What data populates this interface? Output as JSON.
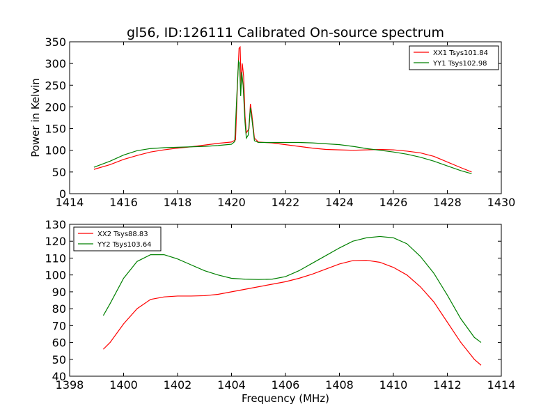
{
  "chart_data": {
    "title": "gl56, ID:126111 Calibrated On-source spectrum",
    "xlabel": "Frequency (MHz)",
    "ylabel": "Power in Kelvin",
    "panels": [
      {
        "type": "line",
        "xlim": [
          1414,
          1430
        ],
        "ylim": [
          0,
          350
        ],
        "xticks": [
          1414,
          1416,
          1418,
          1420,
          1422,
          1424,
          1426,
          1428,
          1430
        ],
        "yticks": [
          0,
          50,
          100,
          150,
          200,
          250,
          300,
          350
        ],
        "legend": "top-right",
        "series": [
          {
            "name": "XX1 Tsys101.84",
            "color": "#ff0000",
            "points": [
              [
                1414.9,
                56
              ],
              [
                1415.5,
                67
              ],
              [
                1416,
                79
              ],
              [
                1416.5,
                88
              ],
              [
                1417,
                96
              ],
              [
                1417.5,
                101
              ],
              [
                1418,
                105
              ],
              [
                1418.5,
                108
              ],
              [
                1419,
                112
              ],
              [
                1419.5,
                116
              ],
              [
                1420,
                119
              ],
              [
                1420.15,
                124
              ],
              [
                1420.22,
                250
              ],
              [
                1420.28,
                335
              ],
              [
                1420.32,
                338
              ],
              [
                1420.36,
                250
              ],
              [
                1420.4,
                300
              ],
              [
                1420.45,
                270
              ],
              [
                1420.5,
                180
              ],
              [
                1420.55,
                140
              ],
              [
                1420.6,
                145
              ],
              [
                1420.65,
                150
              ],
              [
                1420.7,
                207
              ],
              [
                1420.75,
                185
              ],
              [
                1420.85,
                128
              ],
              [
                1421,
                119
              ],
              [
                1421.5,
                117
              ],
              [
                1422,
                113
              ],
              [
                1422.5,
                109
              ],
              [
                1423,
                105
              ],
              [
                1423.5,
                102
              ],
              [
                1424,
                101
              ],
              [
                1424.5,
                100
              ],
              [
                1425,
                101
              ],
              [
                1425.5,
                102
              ],
              [
                1426,
                101
              ],
              [
                1426.5,
                98
              ],
              [
                1427,
                94
              ],
              [
                1427.5,
                86
              ],
              [
                1428,
                73
              ],
              [
                1428.5,
                60
              ],
              [
                1428.9,
                50
              ]
            ]
          },
          {
            "name": "YY1 Tsys102.98",
            "color": "#008000",
            "points": [
              [
                1414.9,
                61
              ],
              [
                1415.5,
                75
              ],
              [
                1416,
                89
              ],
              [
                1416.5,
                99
              ],
              [
                1417,
                104
              ],
              [
                1417.5,
                106
              ],
              [
                1418,
                107
              ],
              [
                1418.5,
                108
              ],
              [
                1419,
                109
              ],
              [
                1419.5,
                111
              ],
              [
                1420,
                114
              ],
              [
                1420.12,
                120
              ],
              [
                1420.2,
                230
              ],
              [
                1420.26,
                305
              ],
              [
                1420.3,
                300
              ],
              [
                1420.34,
                225
              ],
              [
                1420.38,
                280
              ],
              [
                1420.43,
                250
              ],
              [
                1420.5,
                165
              ],
              [
                1420.55,
                128
              ],
              [
                1420.62,
                135
              ],
              [
                1420.7,
                198
              ],
              [
                1420.75,
                175
              ],
              [
                1420.85,
                122
              ],
              [
                1421,
                118
              ],
              [
                1421.5,
                118
              ],
              [
                1422,
                118
              ],
              [
                1422.5,
                118
              ],
              [
                1423,
                117
              ],
              [
                1423.5,
                115
              ],
              [
                1424,
                113
              ],
              [
                1424.5,
                109
              ],
              [
                1425,
                104
              ],
              [
                1425.5,
                100
              ],
              [
                1426,
                96
              ],
              [
                1426.5,
                91
              ],
              [
                1427,
                84
              ],
              [
                1427.5,
                75
              ],
              [
                1428,
                64
              ],
              [
                1428.5,
                53
              ],
              [
                1428.9,
                46
              ]
            ]
          }
        ]
      },
      {
        "type": "line",
        "xlim": [
          1398,
          1414
        ],
        "ylim": [
          40,
          130
        ],
        "xticks": [
          1398,
          1400,
          1402,
          1404,
          1406,
          1408,
          1410,
          1412,
          1414
        ],
        "yticks": [
          40,
          50,
          60,
          70,
          80,
          90,
          100,
          110,
          120,
          130
        ],
        "legend": "top-left",
        "series": [
          {
            "name": "XX2 Tsys88.83",
            "color": "#ff0000",
            "points": [
              [
                1399.25,
                56
              ],
              [
                1399.5,
                60
              ],
              [
                1400,
                71
              ],
              [
                1400.5,
                80
              ],
              [
                1401,
                85.5
              ],
              [
                1401.5,
                87
              ],
              [
                1402,
                87.5
              ],
              [
                1402.5,
                87.5
              ],
              [
                1403,
                87.7
              ],
              [
                1403.5,
                88.5
              ],
              [
                1404,
                90
              ],
              [
                1404.5,
                91.5
              ],
              [
                1405,
                93
              ],
              [
                1405.5,
                94.5
              ],
              [
                1406,
                96
              ],
              [
                1406.5,
                98
              ],
              [
                1407,
                100.5
              ],
              [
                1407.5,
                103.5
              ],
              [
                1408,
                106.5
              ],
              [
                1408.5,
                108.5
              ],
              [
                1409,
                108.7
              ],
              [
                1409.5,
                107.5
              ],
              [
                1410,
                104.5
              ],
              [
                1410.5,
                100
              ],
              [
                1411,
                93
              ],
              [
                1411.5,
                84
              ],
              [
                1412,
                72
              ],
              [
                1412.5,
                60
              ],
              [
                1413,
                50
              ],
              [
                1413.25,
                46.5
              ]
            ]
          },
          {
            "name": "YY2 Tsys103.64",
            "color": "#008000",
            "points": [
              [
                1399.25,
                76
              ],
              [
                1399.5,
                83
              ],
              [
                1400,
                98
              ],
              [
                1400.5,
                108
              ],
              [
                1401,
                112
              ],
              [
                1401.5,
                112
              ],
              [
                1402,
                109.5
              ],
              [
                1402.5,
                106
              ],
              [
                1403,
                102.5
              ],
              [
                1403.5,
                100
              ],
              [
                1404,
                98
              ],
              [
                1404.5,
                97.5
              ],
              [
                1405,
                97.3
              ],
              [
                1405.5,
                97.5
              ],
              [
                1406,
                99
              ],
              [
                1406.5,
                102.5
              ],
              [
                1407,
                107
              ],
              [
                1407.5,
                111.5
              ],
              [
                1408,
                116
              ],
              [
                1408.5,
                120
              ],
              [
                1409,
                122
              ],
              [
                1409.5,
                122.8
              ],
              [
                1410,
                122
              ],
              [
                1410.5,
                118.5
              ],
              [
                1411,
                111
              ],
              [
                1411.5,
                101
              ],
              [
                1412,
                88
              ],
              [
                1412.5,
                74
              ],
              [
                1413,
                63
              ],
              [
                1413.25,
                60
              ]
            ]
          }
        ]
      }
    ]
  }
}
